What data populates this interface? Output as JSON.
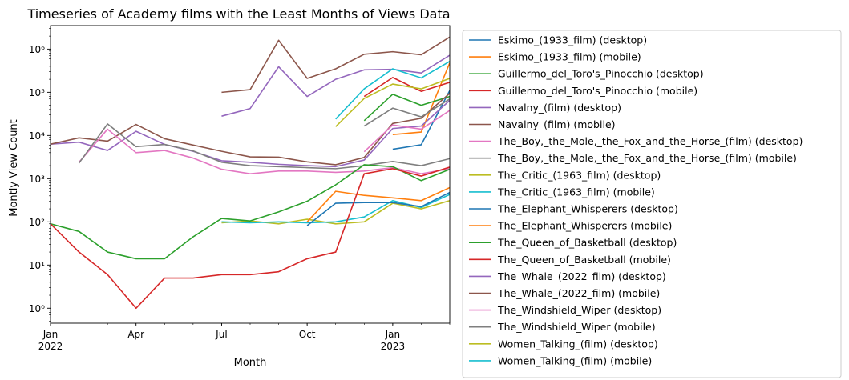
{
  "chart_data": {
    "type": "line",
    "title": "Timeseries of Academy films with the Least Months of Views Data",
    "xlabel": "Month",
    "ylabel": "Montly View Count",
    "yscale": "log",
    "ylim": [
      0.45,
      3500000
    ],
    "xlim": [
      "2022-01",
      "2023-03"
    ],
    "x": [
      "2022-01",
      "2022-02",
      "2022-03",
      "2022-04",
      "2022-05",
      "2022-06",
      "2022-07",
      "2022-08",
      "2022-09",
      "2022-10",
      "2022-11",
      "2022-12",
      "2023-01",
      "2023-02",
      "2023-03"
    ],
    "x_ticks": [
      {
        "month": "2022-01",
        "label": "Jan",
        "label2": "2022"
      },
      {
        "month": "2022-04",
        "label": "Apr",
        "label2": ""
      },
      {
        "month": "2022-07",
        "label": "Jul",
        "label2": ""
      },
      {
        "month": "2022-10",
        "label": "Oct",
        "label2": ""
      },
      {
        "month": "2023-01",
        "label": "Jan",
        "label2": "2023"
      }
    ],
    "y_ticks": [
      {
        "value": 1,
        "label": "10⁰"
      },
      {
        "value": 10,
        "label": "10¹"
      },
      {
        "value": 100,
        "label": "10²"
      },
      {
        "value": 1000,
        "label": "10³"
      },
      {
        "value": 10000,
        "label": "10⁴"
      },
      {
        "value": 100000,
        "label": "10⁵"
      },
      {
        "value": 1000000,
        "label": "10⁶"
      }
    ],
    "grid": false,
    "legend_position": "outside-right",
    "series": [
      {
        "name": "Eskimo_(1933_film) (desktop)",
        "color": "#1f77b4",
        "values": [
          null,
          null,
          null,
          null,
          null,
          null,
          null,
          null,
          null,
          null,
          null,
          null,
          4800,
          6100,
          110000
        ]
      },
      {
        "name": "Eskimo_(1933_film) (mobile)",
        "color": "#ff7f0e",
        "values": [
          null,
          null,
          null,
          null,
          null,
          null,
          null,
          null,
          null,
          null,
          null,
          null,
          10500,
          12000,
          480000
        ]
      },
      {
        "name": "Guillermo_del_Toro's_Pinocchio (desktop)",
        "color": "#2ca02c",
        "values": [
          null,
          null,
          null,
          null,
          null,
          null,
          null,
          null,
          null,
          null,
          null,
          22000,
          90000,
          50000,
          80000
        ]
      },
      {
        "name": "Guillermo_del_Toro's_Pinocchio (mobile)",
        "color": "#d62728",
        "values": [
          null,
          null,
          null,
          null,
          null,
          null,
          null,
          null,
          null,
          null,
          null,
          80000,
          220000,
          105000,
          170000
        ]
      },
      {
        "name": "Navalny_(film) (desktop)",
        "color": "#9467bd",
        "values": [
          6300,
          7000,
          4500,
          12500,
          6200,
          4300,
          2600,
          2400,
          2150,
          2000,
          1900,
          2700,
          14500,
          16500,
          65000
        ]
      },
      {
        "name": "Navalny_(film) (mobile)",
        "color": "#8c564b",
        "values": [
          6300,
          8800,
          7400,
          18000,
          8400,
          6000,
          4300,
          3200,
          3150,
          2450,
          2100,
          3100,
          19000,
          25000,
          95000
        ]
      },
      {
        "name": "The_Boy,_the_Mole,_the_Fox_and_the_Horse_(film) (desktop)",
        "color": "#e377c2",
        "values": [
          null,
          2400,
          14000,
          4000,
          4500,
          3000,
          1650,
          1300,
          1500,
          1500,
          1400,
          1500,
          1800,
          1300,
          1700
        ]
      },
      {
        "name": "The_Boy,_the_Mole,_the_Fox_and_the_Horse_(film) (mobile)",
        "color": "#7f7f7f",
        "values": [
          null,
          2300,
          18500,
          5500,
          6200,
          4400,
          2400,
          2000,
          1900,
          1800,
          1700,
          2000,
          2500,
          2000,
          2900
        ]
      },
      {
        "name": "The_Critic_(1963_film) (desktop)",
        "color": "#bcbd22",
        "values": [
          null,
          null,
          null,
          null,
          null,
          null,
          95,
          105,
          90,
          115,
          90,
          100,
          270,
          200,
          310
        ]
      },
      {
        "name": "The_Critic_(1963_film) (mobile)",
        "color": "#17becf",
        "values": [
          null,
          null,
          null,
          null,
          null,
          null,
          100,
          95,
          100,
          95,
          100,
          130,
          310,
          215,
          430
        ]
      },
      {
        "name": "The_Elephant_Whisperers (desktop)",
        "color": "#1f77b4",
        "values": [
          null,
          null,
          null,
          null,
          null,
          null,
          null,
          null,
          null,
          82,
          270,
          280,
          280,
          225,
          480
        ]
      },
      {
        "name": "The_Elephant_Whisperers (mobile)",
        "color": "#ff7f0e",
        "values": [
          null,
          null,
          null,
          null,
          null,
          null,
          null,
          null,
          null,
          100,
          510,
          410,
          360,
          310,
          620
        ]
      },
      {
        "name": "The_Queen_of_Basketball (desktop)",
        "color": "#2ca02c",
        "values": [
          90,
          60,
          20,
          14,
          14,
          45,
          120,
          105,
          170,
          300,
          720,
          2100,
          1900,
          900,
          1650
        ]
      },
      {
        "name": "The_Queen_of_Basketball (mobile)",
        "color": "#d62728",
        "values": [
          90,
          20,
          6,
          1,
          5,
          5,
          6,
          6,
          7,
          14,
          20,
          1300,
          1700,
          1150,
          1850
        ]
      },
      {
        "name": "The_Whale_(2022_film) (desktop)",
        "color": "#9467bd",
        "values": [
          null,
          null,
          null,
          null,
          null,
          null,
          28000,
          42000,
          390000,
          80000,
          200000,
          330000,
          340000,
          280000,
          720000
        ]
      },
      {
        "name": "The_Whale_(2022_film) (mobile)",
        "color": "#8c564b",
        "values": [
          null,
          null,
          null,
          null,
          null,
          null,
          100000,
          115000,
          1600000,
          210000,
          350000,
          760000,
          870000,
          740000,
          1900000
        ]
      },
      {
        "name": "The_Windshield_Wiper (desktop)",
        "color": "#e377c2",
        "values": [
          null,
          null,
          null,
          null,
          null,
          null,
          null,
          null,
          null,
          null,
          null,
          4200,
          17500,
          14000,
          38000
        ]
      },
      {
        "name": "The_Windshield_Wiper (mobile)",
        "color": "#7f7f7f",
        "values": [
          null,
          null,
          null,
          null,
          null,
          null,
          null,
          null,
          null,
          null,
          null,
          16500,
          43000,
          27000,
          70000
        ]
      },
      {
        "name": "Women_Talking_(film) (desktop)",
        "color": "#bcbd22",
        "values": [
          null,
          null,
          null,
          null,
          null,
          null,
          null,
          null,
          null,
          null,
          16000,
          72000,
          155000,
          120000,
          210000
        ]
      },
      {
        "name": "Women_Talking_(film) (mobile)",
        "color": "#17becf",
        "values": [
          null,
          null,
          null,
          null,
          null,
          null,
          null,
          null,
          null,
          null,
          24000,
          120000,
          350000,
          215000,
          520000
        ]
      }
    ]
  }
}
